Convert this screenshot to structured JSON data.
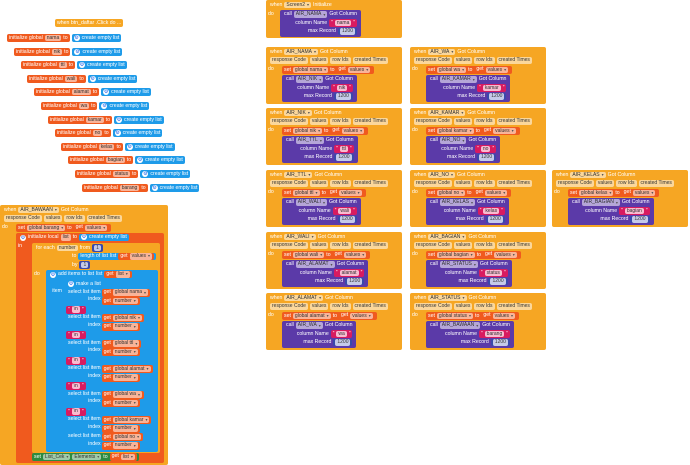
{
  "colors": {
    "event": "#f6a623",
    "variable": "#f05a1e",
    "list": "#1e9be9",
    "component": "#5b3aa8",
    "number": "#3949ab",
    "text": "#d81b60",
    "setter": "#2e8b3e"
  },
  "labels": {
    "when": "when",
    "got_column": "Got Column",
    "do": "do",
    "set": "set",
    "to": "to",
    "get": "get",
    "call": "call",
    "column_name": "column Name",
    "max_record": "max Record",
    "initialize": "Initialize",
    "params": [
      "response Code",
      "values",
      "row Ids",
      "created Times"
    ],
    "initialize_global": "initialize global",
    "create_empty_list": "create empty list",
    "initialize_local": "initialize local",
    "in": "in",
    "for_each": "for each",
    "from": "from",
    "by": "by",
    "length_of_list": "length of list",
    "list": "list",
    "add_items_to_list": "add items to list",
    "item": "item",
    "make_a_list": "make a list",
    "select_list_item": "select list item",
    "index": "index",
    "values": "values",
    "newline": "\\n",
    "number": "number",
    "one": "1",
    "max_value": "1200",
    "local_list": "list"
  },
  "orphan_event": "when  btn_daftar .Click do ...",
  "globals": [
    "nama",
    "nik",
    "ttl",
    "wali",
    "alamat",
    "wa",
    "kamar",
    "no",
    "kelas",
    "bagian",
    "status",
    "barang"
  ],
  "screen_init": {
    "component": "Screen2",
    "call": "AIR_NAMA",
    "column": "nama"
  },
  "handlers": [
    {
      "component": "AIR_NAMA",
      "set": "global nama",
      "call": "AIR_NIK",
      "column": "nik"
    },
    {
      "component": "AIR_NIK",
      "set": "global nik",
      "call": "AIR_TTL",
      "column": "ttl"
    },
    {
      "component": "AIR_TTL",
      "set": "global ttl",
      "call": "AIR_WALI",
      "column": "wali"
    },
    {
      "component": "AIR_WALI",
      "set": "global wali",
      "call": "AIR_ALAMAT",
      "column": "alamat"
    },
    {
      "component": "AIR_ALAMAT",
      "set": "global alamat",
      "call": "AIR_WA",
      "column": "wa"
    },
    {
      "component": "AIR_WA",
      "set": "global wa",
      "call": "AIR_KAMAR",
      "column": "kamar"
    },
    {
      "component": "AIR_KAMAR",
      "set": "global kamar",
      "call": "AIR_NO",
      "column": "no"
    },
    {
      "component": "AIR_NO",
      "set": "global no",
      "call": "AIR_KELAS",
      "column": "kelas"
    },
    {
      "component": "AIR_BAGIAN",
      "set": "global bagian",
      "call": "AIR_STATUS",
      "column": "status"
    },
    {
      "component": "AIR_STATUS",
      "set": "global status",
      "call": "AIR_BAWAAN",
      "column": "barang"
    },
    {
      "component": "AIR_KELAS",
      "set": "global kelas",
      "call": "AIR_BAGIAN",
      "column": "bagian"
    }
  ],
  "bawaan": {
    "component": "AIR_BAWAAN",
    "set": "global barang",
    "foreach_var": "number",
    "items": [
      "global nama",
      "global nik",
      "global ttl",
      "global alamat",
      "global wa",
      "global kamar",
      "global no"
    ],
    "set_component": "List_Cek",
    "set_property": "Elements"
  }
}
